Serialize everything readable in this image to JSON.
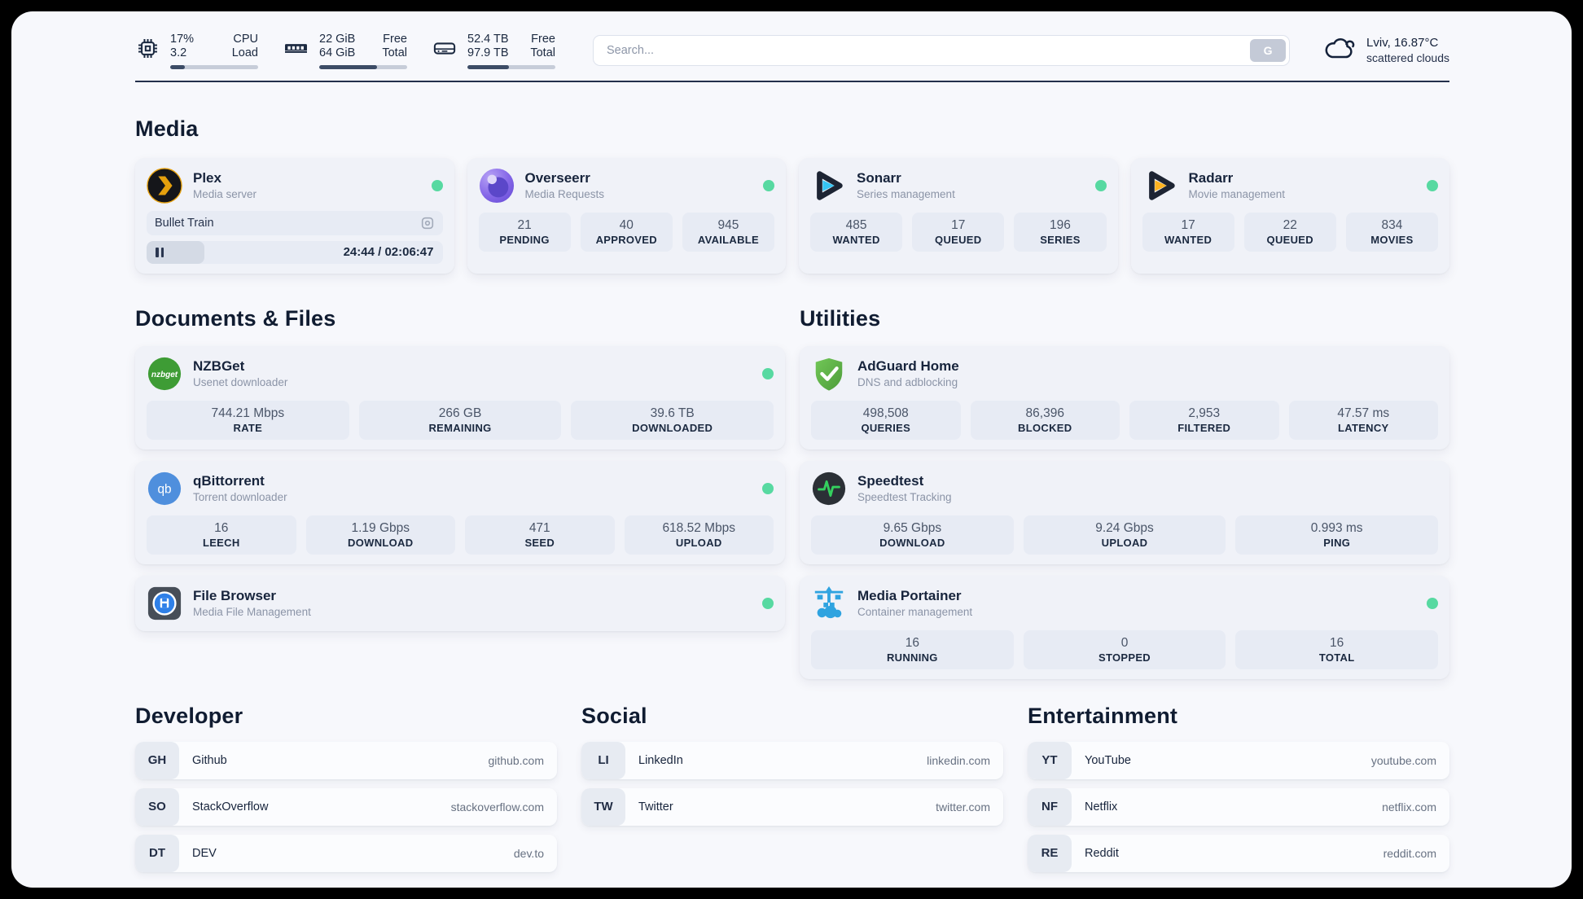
{
  "colors": {
    "status_online": "#57d9a1",
    "accent_dark": "#1b2940"
  },
  "header": {
    "system_stats": [
      {
        "icon": "cpu-icon",
        "value_top": "17%",
        "value_bottom": "3.2",
        "label_top": "CPU",
        "label_bottom": "Load",
        "progress": 17
      },
      {
        "icon": "ram-icon",
        "value_top": "22 GiB",
        "value_bottom": "64 GiB",
        "label_top": "Free",
        "label_bottom": "Total",
        "progress": 66
      },
      {
        "icon": "disk-icon",
        "value_top": "52.4 TB",
        "value_bottom": "97.9 TB",
        "label_top": "Free",
        "label_bottom": "Total",
        "progress": 47
      }
    ],
    "search": {
      "placeholder": "Search...",
      "button_label": "G"
    },
    "weather": {
      "location_temp": "Lviv, 16.87°C",
      "condition": "scattered clouds"
    }
  },
  "media": {
    "title": "Media",
    "plex": {
      "name": "Plex",
      "desc": "Media server",
      "now_playing": "Bullet Train",
      "time": "24:44 / 02:06:47",
      "progress": 19.5
    },
    "overseerr": {
      "name": "Overseerr",
      "desc": "Media Requests",
      "stats": [
        {
          "value": "21",
          "label": "PENDING"
        },
        {
          "value": "40",
          "label": "APPROVED"
        },
        {
          "value": "945",
          "label": "AVAILABLE"
        }
      ]
    },
    "sonarr": {
      "name": "Sonarr",
      "desc": "Series management",
      "stats": [
        {
          "value": "485",
          "label": "WANTED"
        },
        {
          "value": "17",
          "label": "QUEUED"
        },
        {
          "value": "196",
          "label": "SERIES"
        }
      ]
    },
    "radarr": {
      "name": "Radarr",
      "desc": "Movie management",
      "stats": [
        {
          "value": "17",
          "label": "WANTED"
        },
        {
          "value": "22",
          "label": "QUEUED"
        },
        {
          "value": "834",
          "label": "MOVIES"
        }
      ]
    }
  },
  "documents": {
    "title": "Documents & Files",
    "nzbget": {
      "name": "NZBGet",
      "desc": "Usenet downloader",
      "stats": [
        {
          "value": "744.21 Mbps",
          "label": "RATE"
        },
        {
          "value": "266 GB",
          "label": "REMAINING"
        },
        {
          "value": "39.6 TB",
          "label": "DOWNLOADED"
        }
      ]
    },
    "qbittorrent": {
      "name": "qBittorrent",
      "desc": "Torrent downloader",
      "stats": [
        {
          "value": "16",
          "label": "LEECH"
        },
        {
          "value": "1.19 Gbps",
          "label": "DOWNLOAD"
        },
        {
          "value": "471",
          "label": "SEED"
        },
        {
          "value": "618.52 Mbps",
          "label": "UPLOAD"
        }
      ]
    },
    "filebrowser": {
      "name": "File Browser",
      "desc": "Media File Management"
    }
  },
  "utilities": {
    "title": "Utilities",
    "adguard": {
      "name": "AdGuard Home",
      "desc": "DNS and adblocking",
      "stats": [
        {
          "value": "498,508",
          "label": "QUERIES"
        },
        {
          "value": "86,396",
          "label": "BLOCKED"
        },
        {
          "value": "2,953",
          "label": "FILTERED"
        },
        {
          "value": "47.57 ms",
          "label": "LATENCY"
        }
      ]
    },
    "speedtest": {
      "name": "Speedtest",
      "desc": "Speedtest Tracking",
      "stats": [
        {
          "value": "9.65 Gbps",
          "label": "DOWNLOAD"
        },
        {
          "value": "9.24 Gbps",
          "label": "UPLOAD"
        },
        {
          "value": "0.993 ms",
          "label": "PING"
        }
      ]
    },
    "portainer": {
      "name": "Media Portainer",
      "desc": "Container management",
      "stats": [
        {
          "value": "16",
          "label": "RUNNING"
        },
        {
          "value": "0",
          "label": "STOPPED"
        },
        {
          "value": "16",
          "label": "TOTAL"
        }
      ]
    }
  },
  "bookmarks": [
    {
      "title": "Developer",
      "links": [
        {
          "abbr": "GH",
          "name": "Github",
          "url": "github.com"
        },
        {
          "abbr": "SO",
          "name": "StackOverflow",
          "url": "stackoverflow.com"
        },
        {
          "abbr": "DT",
          "name": "DEV",
          "url": "dev.to"
        }
      ]
    },
    {
      "title": "Social",
      "links": [
        {
          "abbr": "LI",
          "name": "LinkedIn",
          "url": "linkedin.com"
        },
        {
          "abbr": "TW",
          "name": "Twitter",
          "url": "twitter.com"
        }
      ]
    },
    {
      "title": "Entertainment",
      "links": [
        {
          "abbr": "YT",
          "name": "YouTube",
          "url": "youtube.com"
        },
        {
          "abbr": "NF",
          "name": "Netflix",
          "url": "netflix.com"
        },
        {
          "abbr": "RE",
          "name": "Reddit",
          "url": "reddit.com"
        }
      ]
    }
  ]
}
